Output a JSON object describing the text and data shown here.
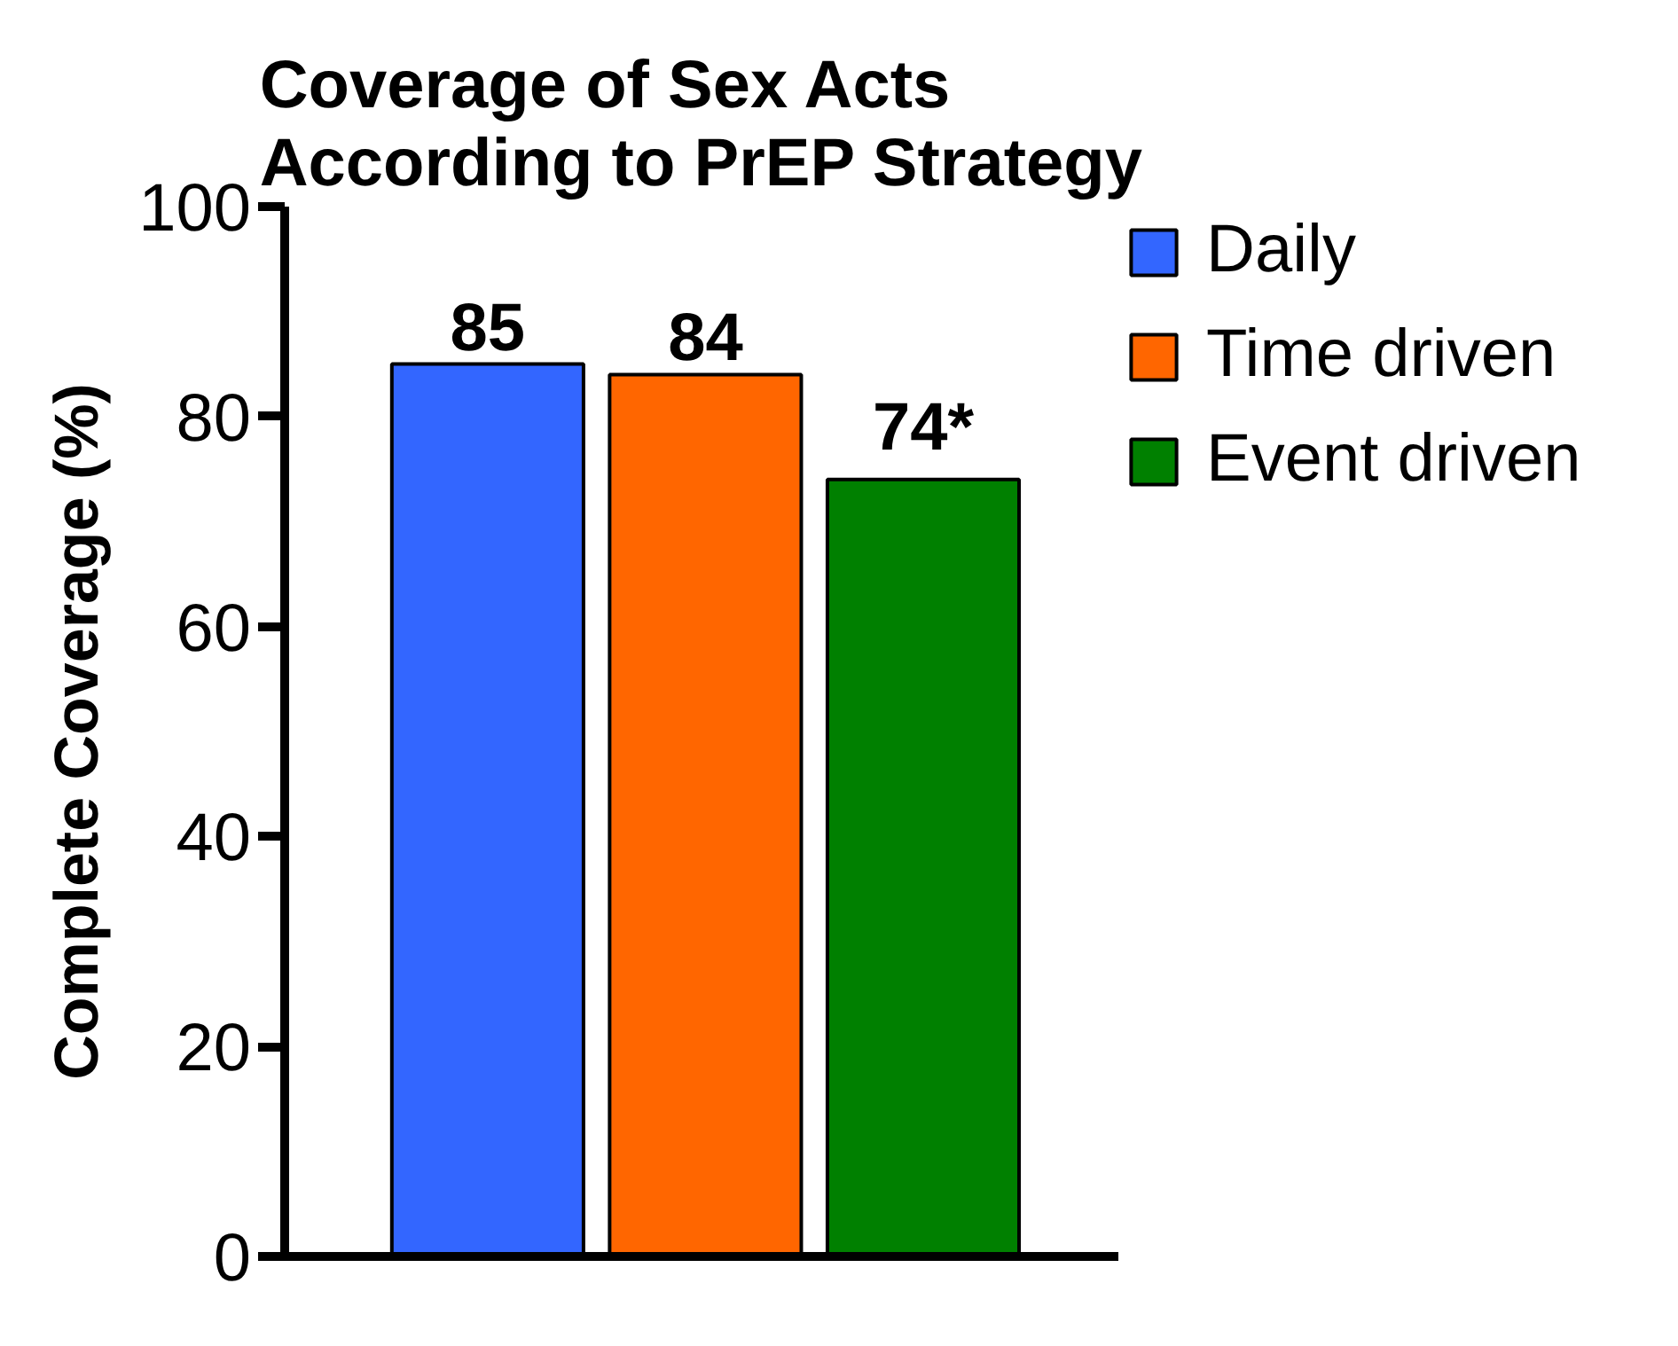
{
  "chart_data": {
    "type": "bar",
    "title": "Coverage of Sex Acts\nAccording to PrEP Strategy",
    "ylabel": "Complete Coverage (%)",
    "categories": [
      null
    ],
    "series": [
      {
        "name": "Daily",
        "color": "#3366ff",
        "values": [
          85
        ],
        "value_labels": [
          "85"
        ]
      },
      {
        "name": "Time driven",
        "color": "#ff6600",
        "values": [
          84
        ],
        "value_labels": [
          "84"
        ]
      },
      {
        "name": "Event driven",
        "color": "#008000",
        "values": [
          74
        ],
        "value_labels": [
          "74*"
        ]
      }
    ],
    "ylim": [
      0,
      100
    ],
    "yticks": [
      0,
      20,
      40,
      60,
      80,
      100
    ],
    "grid": false,
    "legend": "top right"
  }
}
